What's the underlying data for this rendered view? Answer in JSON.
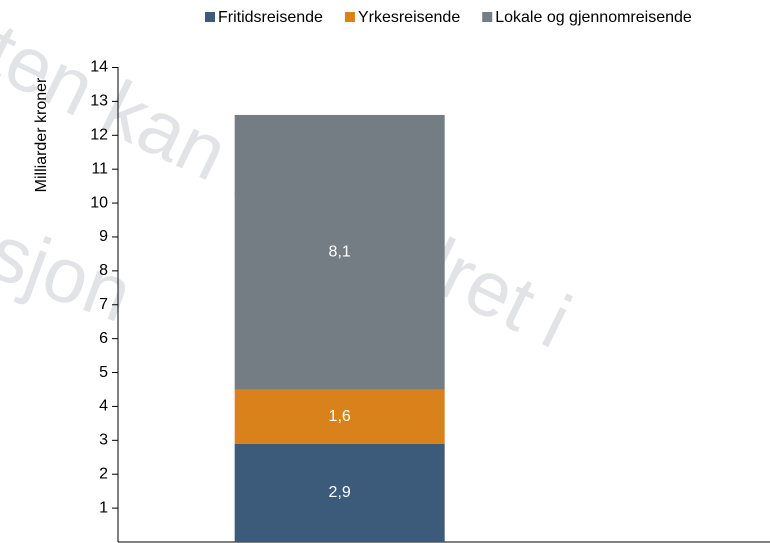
{
  "chart_data": {
    "type": "stacked_bar",
    "y_label": "Milliarder kroner",
    "categories": [
      null
    ],
    "series": [
      {
        "name": "Fritidsreisende",
        "color": "#3c5a7a",
        "values": [
          2.9
        ],
        "value_labels": [
          "2,9"
        ]
      },
      {
        "name": "Yrkesreisende",
        "color": "#d9821b",
        "values": [
          1.6
        ],
        "value_labels": [
          "1,6"
        ]
      },
      {
        "name": "Lokale og gjennomreisende",
        "color": "#737d83",
        "values": [
          8.1
        ],
        "value_labels": [
          "8,1"
        ]
      }
    ],
    "ylim": [
      0,
      14
    ],
    "yticks": [
      1,
      2,
      3,
      4,
      5,
      6,
      7,
      8,
      9,
      10,
      11,
      12,
      13,
      14
    ],
    "legend": "top",
    "watermark": [
      "ten kan bli endret i",
      "rsjon"
    ]
  }
}
